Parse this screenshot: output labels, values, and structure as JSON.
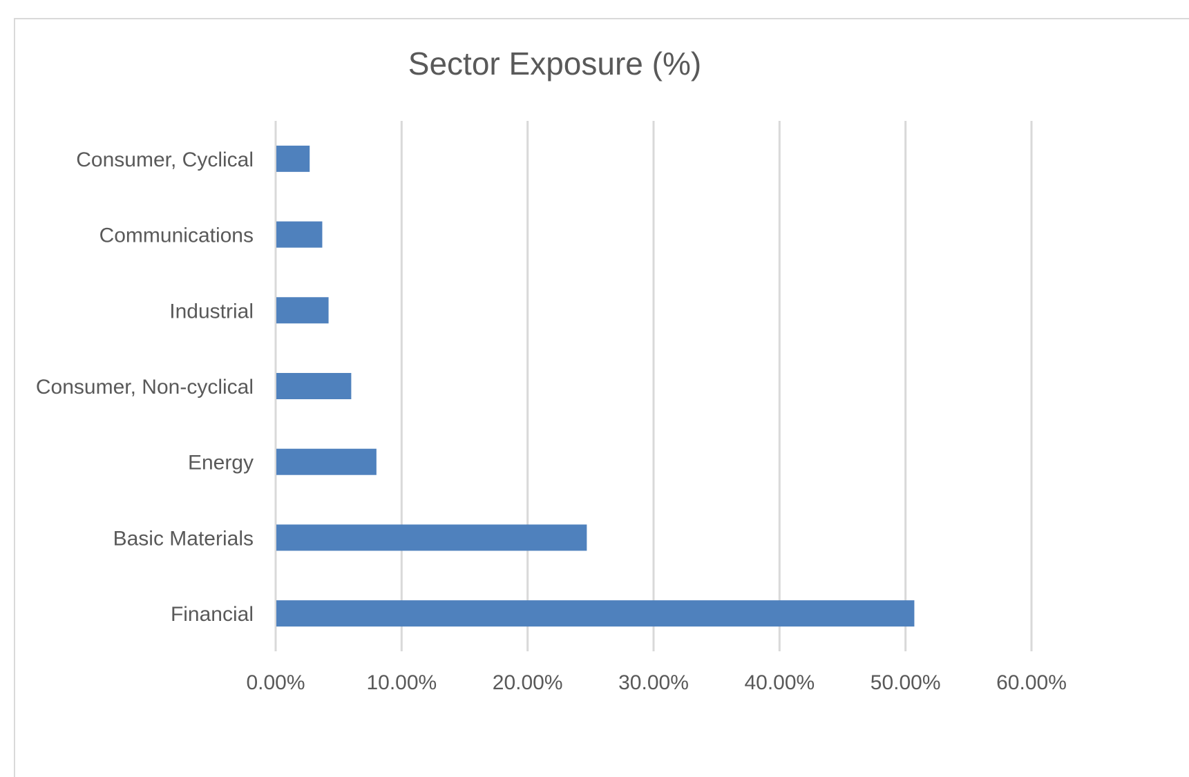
{
  "chart_data": {
    "type": "bar",
    "orientation": "horizontal",
    "title": "Sector Exposure (%)",
    "xlabel": "",
    "ylabel": "",
    "categories": [
      "Consumer, Cyclical",
      "Communications",
      "Industrial",
      "Consumer, Non-cyclical",
      "Energy",
      "Basic Materials",
      "Financial"
    ],
    "values": [
      2.7,
      3.7,
      4.2,
      6.0,
      8.0,
      24.7,
      50.7
    ],
    "value_unit": "%",
    "xlim": [
      0,
      60
    ],
    "x_ticks": [
      0,
      10,
      20,
      30,
      40,
      50,
      60
    ],
    "x_tick_labels": [
      "0.00%",
      "10.00%",
      "20.00%",
      "30.00%",
      "40.00%",
      "50.00%",
      "60.00%"
    ],
    "grid": "vertical",
    "legend": "none",
    "bar_color": "#4f81bd",
    "grid_color": "#d9d9d9"
  }
}
